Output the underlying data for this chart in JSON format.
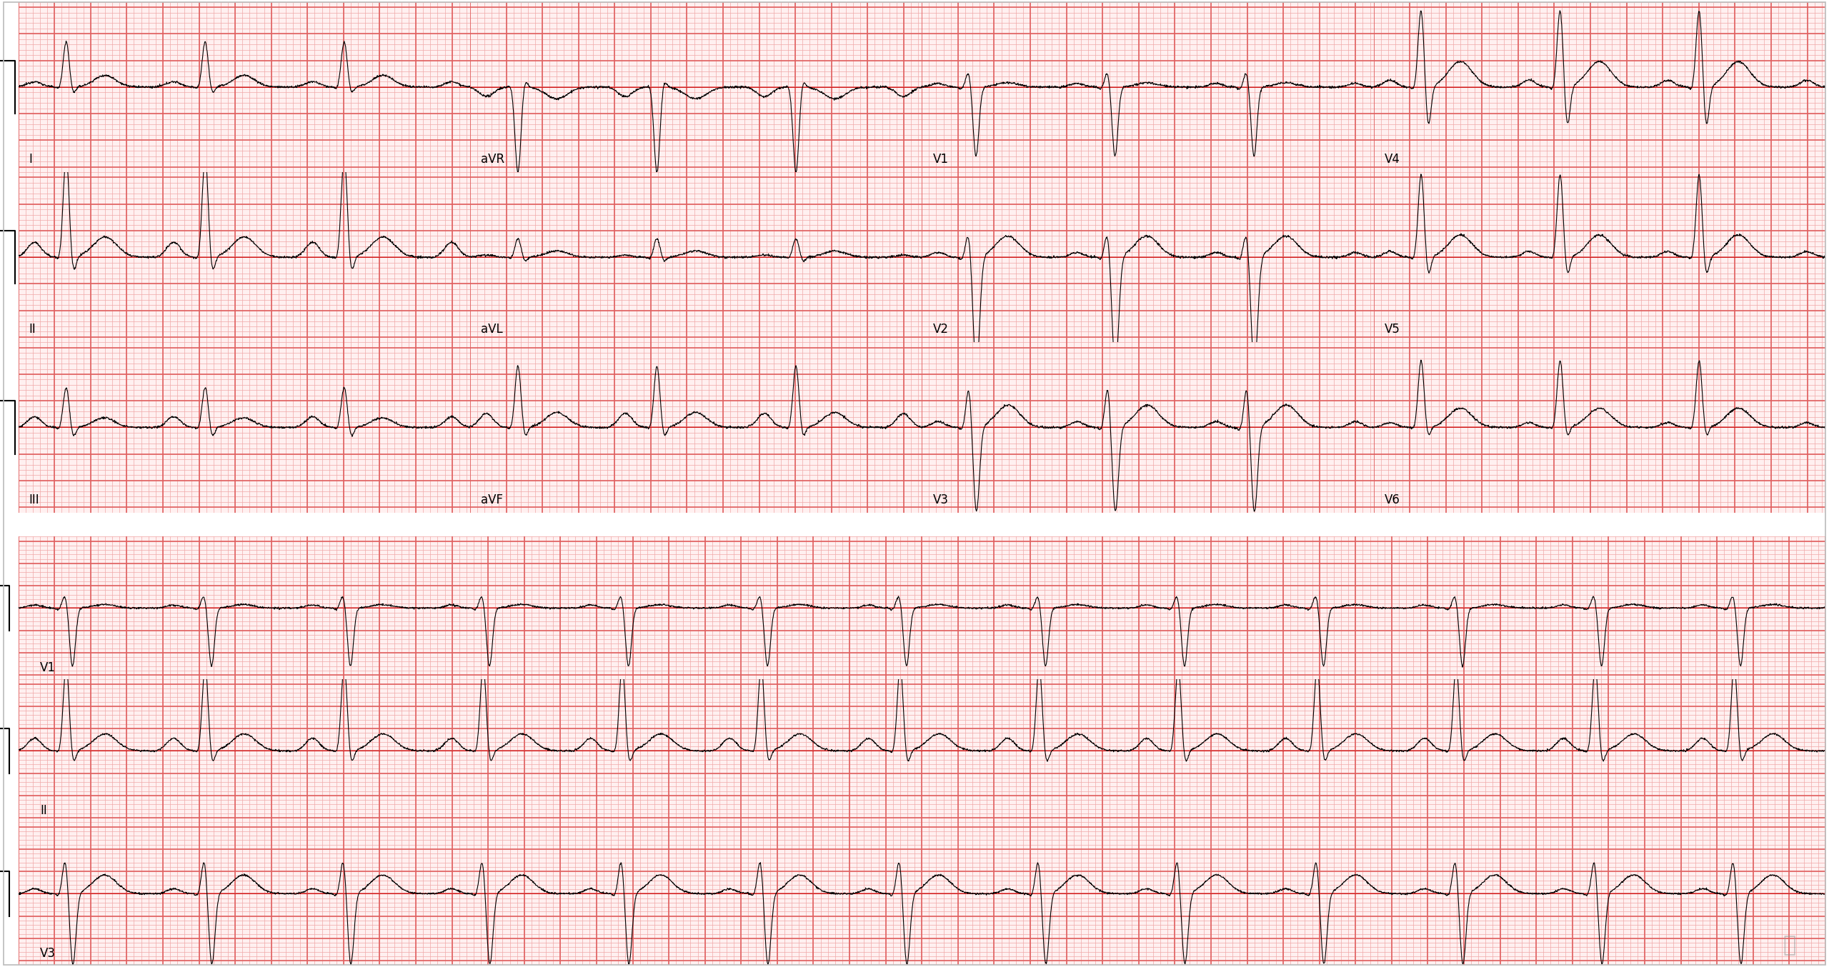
{
  "bg_color": "#ffffff",
  "paper_bg": "#fff0f0",
  "grid_major_color": "#e06060",
  "grid_minor_color": "#f0a8a8",
  "ecg_color": "#000000",
  "ref_line_color": "#cc0000",
  "fig_width": 25.6,
  "fig_height": 13.54,
  "dpi": 100,
  "leads_row1": [
    "I",
    "aVR",
    "V1",
    "V4"
  ],
  "leads_row2": [
    "II",
    "aVL",
    "V2",
    "V5"
  ],
  "leads_row3": [
    "III",
    "aVF",
    "V3",
    "V6"
  ],
  "leads_row4": [
    "V1",
    "II",
    "V3"
  ],
  "label_fontsize": 12,
  "hr": 78,
  "strip_duration": 2.5,
  "rhythm_duration": 10.0,
  "mm_per_s": 25.0,
  "mm_per_mV": 10.0
}
